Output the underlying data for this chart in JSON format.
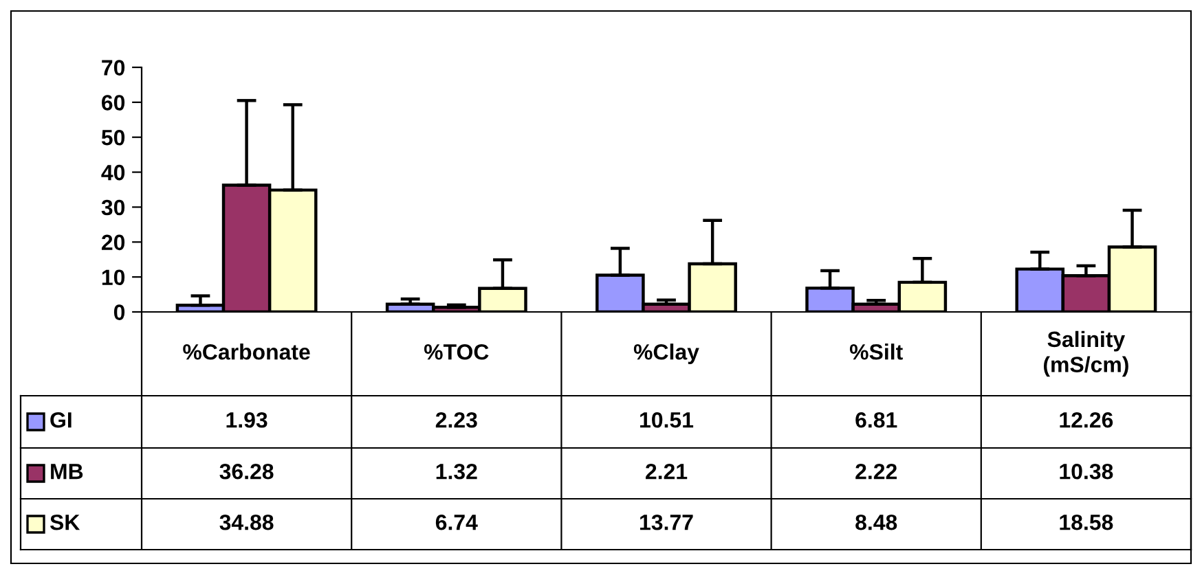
{
  "chart_data": {
    "type": "bar",
    "categories": [
      "%Carbonate",
      "%TOC",
      "%Clay",
      "%Silt",
      "Salinity\n(mS/cm)"
    ],
    "series": [
      {
        "name": "GI",
        "color": "#9999ff",
        "values": [
          1.93,
          2.23,
          10.51,
          6.81,
          12.26
        ],
        "errors": [
          [
            1.93,
            4.6
          ],
          [
            2.23,
            3.7
          ],
          [
            10.51,
            18.2
          ],
          [
            6.81,
            11.8
          ],
          [
            12.26,
            17.1
          ]
        ]
      },
      {
        "name": "MB",
        "color": "#993366",
        "values": [
          36.28,
          1.32,
          2.21,
          2.22,
          10.38
        ],
        "errors": [
          [
            36.28,
            60.5
          ],
          [
            1.32,
            2.0
          ],
          [
            2.21,
            3.4
          ],
          [
            2.22,
            3.3
          ],
          [
            10.38,
            13.2
          ]
        ]
      },
      {
        "name": "SK",
        "color": "#ffffcc",
        "values": [
          34.88,
          6.74,
          13.77,
          8.48,
          18.58
        ],
        "errors": [
          [
            34.88,
            59.3
          ],
          [
            6.74,
            14.9
          ],
          [
            13.77,
            26.2
          ],
          [
            8.48,
            15.3
          ],
          [
            18.58,
            29.1
          ]
        ]
      }
    ],
    "ylim": [
      0,
      70
    ],
    "yticks": [
      0,
      10,
      20,
      30,
      40,
      50,
      60,
      70
    ],
    "grid": false,
    "data_labels": true,
    "legend": "bottom left"
  }
}
